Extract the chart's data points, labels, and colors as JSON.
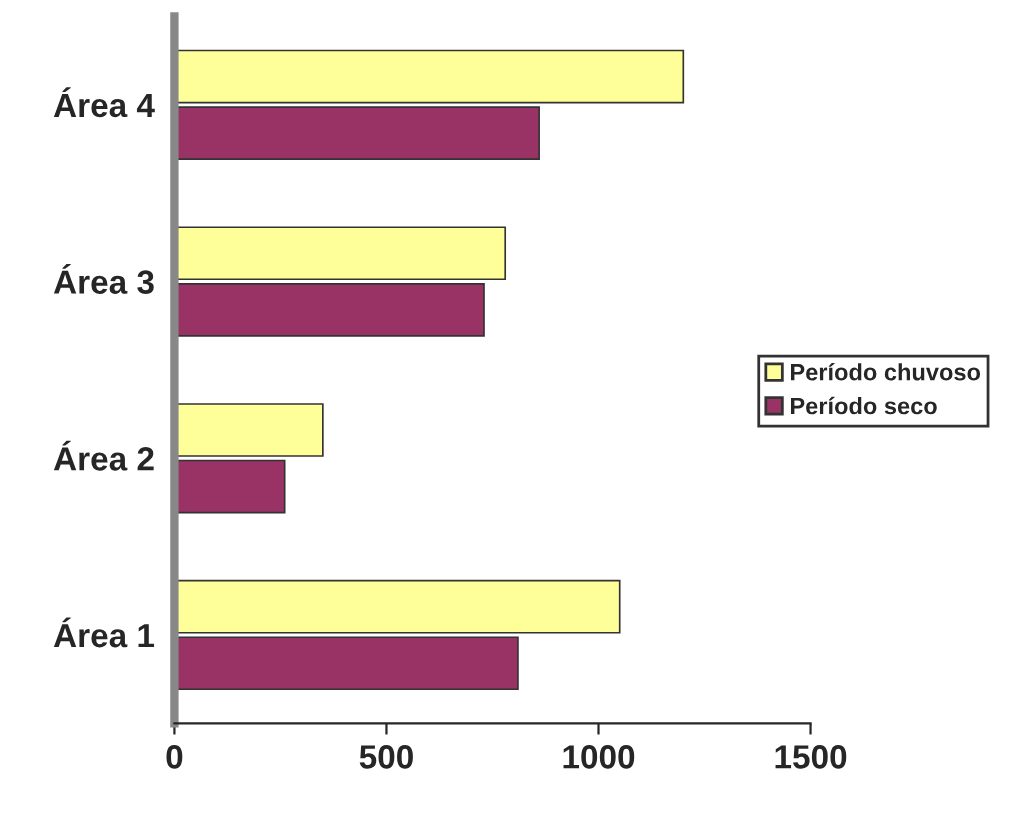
{
  "chart_data": {
    "type": "bar",
    "orientation": "horizontal",
    "categories": [
      "Área 4",
      "Área 3",
      "Área 2",
      "Área 1"
    ],
    "series": [
      {
        "name": "Período chuvoso",
        "color": "#ffff99",
        "values": [
          1200,
          780,
          350,
          1050
        ]
      },
      {
        "name": "Período seco",
        "color": "#993366",
        "values": [
          860,
          730,
          260,
          810
        ]
      }
    ],
    "xlim": [
      0,
      1500
    ],
    "xticks": [
      0,
      500,
      1000,
      1500
    ],
    "grid": false,
    "legend": "right"
  }
}
